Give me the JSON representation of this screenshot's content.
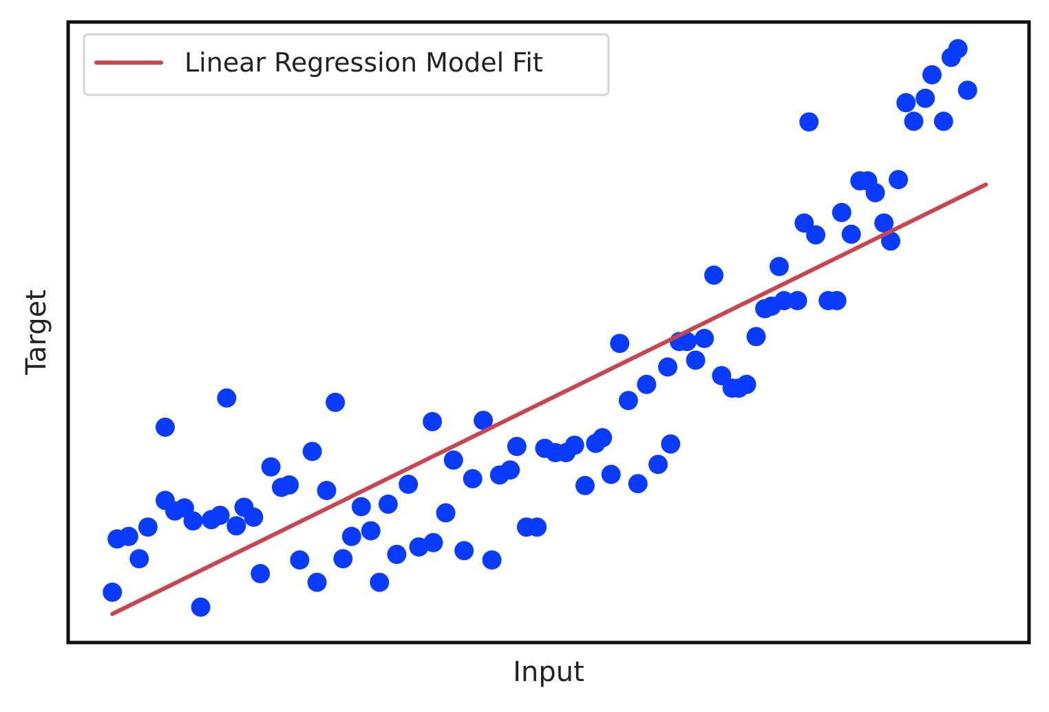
{
  "chart_data": {
    "type": "scatter",
    "title": "",
    "xlabel": "Input",
    "ylabel": "Target",
    "xlim": [
      0,
      1
    ],
    "ylim": [
      0,
      1
    ],
    "grid": false,
    "ticks": false,
    "legend": {
      "placement": "top-left",
      "entries": [
        "Linear Regression Model Fit"
      ]
    },
    "series": [
      {
        "type": "scatter",
        "color": "#0a3cff",
        "points": [
          [
            0.046,
            0.081
          ],
          [
            0.051,
            0.167
          ],
          [
            0.063,
            0.171
          ],
          [
            0.074,
            0.135
          ],
          [
            0.083,
            0.186
          ],
          [
            0.101,
            0.229
          ],
          [
            0.101,
            0.347
          ],
          [
            0.111,
            0.212
          ],
          [
            0.121,
            0.217
          ],
          [
            0.13,
            0.196
          ],
          [
            0.138,
            0.057
          ],
          [
            0.149,
            0.198
          ],
          [
            0.158,
            0.205
          ],
          [
            0.165,
            0.394
          ],
          [
            0.175,
            0.188
          ],
          [
            0.183,
            0.218
          ],
          [
            0.193,
            0.202
          ],
          [
            0.2,
            0.111
          ],
          [
            0.211,
            0.283
          ],
          [
            0.222,
            0.25
          ],
          [
            0.23,
            0.254
          ],
          [
            0.241,
            0.133
          ],
          [
            0.254,
            0.308
          ],
          [
            0.259,
            0.097
          ],
          [
            0.269,
            0.245
          ],
          [
            0.278,
            0.387
          ],
          [
            0.286,
            0.135
          ],
          [
            0.295,
            0.171
          ],
          [
            0.305,
            0.219
          ],
          [
            0.315,
            0.18
          ],
          [
            0.324,
            0.097
          ],
          [
            0.333,
            0.223
          ],
          [
            0.342,
            0.142
          ],
          [
            0.354,
            0.255
          ],
          [
            0.365,
            0.154
          ],
          [
            0.379,
            0.356
          ],
          [
            0.38,
            0.161
          ],
          [
            0.393,
            0.209
          ],
          [
            0.401,
            0.294
          ],
          [
            0.412,
            0.148
          ],
          [
            0.421,
            0.264
          ],
          [
            0.432,
            0.358
          ],
          [
            0.441,
            0.133
          ],
          [
            0.449,
            0.27
          ],
          [
            0.46,
            0.278
          ],
          [
            0.467,
            0.316
          ],
          [
            0.477,
            0.186
          ],
          [
            0.488,
            0.186
          ],
          [
            0.496,
            0.313
          ],
          [
            0.507,
            0.306
          ],
          [
            0.518,
            0.306
          ],
          [
            0.527,
            0.318
          ],
          [
            0.538,
            0.253
          ],
          [
            0.549,
            0.321
          ],
          [
            0.556,
            0.33
          ],
          [
            0.565,
            0.271
          ],
          [
            0.574,
            0.482
          ],
          [
            0.583,
            0.39
          ],
          [
            0.593,
            0.256
          ],
          [
            0.602,
            0.416
          ],
          [
            0.614,
            0.287
          ],
          [
            0.624,
            0.444
          ],
          [
            0.627,
            0.32
          ],
          [
            0.636,
            0.485
          ],
          [
            0.644,
            0.485
          ],
          [
            0.653,
            0.455
          ],
          [
            0.662,
            0.49
          ],
          [
            0.672,
            0.592
          ],
          [
            0.68,
            0.43
          ],
          [
            0.691,
            0.41
          ],
          [
            0.698,
            0.41
          ],
          [
            0.706,
            0.416
          ],
          [
            0.716,
            0.493
          ],
          [
            0.725,
            0.538
          ],
          [
            0.732,
            0.542
          ],
          [
            0.74,
            0.606
          ],
          [
            0.745,
            0.551
          ],
          [
            0.759,
            0.551
          ],
          [
            0.766,
            0.676
          ],
          [
            0.771,
            0.839
          ],
          [
            0.778,
            0.657
          ],
          [
            0.791,
            0.551
          ],
          [
            0.8,
            0.551
          ],
          [
            0.805,
            0.693
          ],
          [
            0.815,
            0.658
          ],
          [
            0.824,
            0.744
          ],
          [
            0.832,
            0.744
          ],
          [
            0.84,
            0.725
          ],
          [
            0.849,
            0.676
          ],
          [
            0.856,
            0.647
          ],
          [
            0.864,
            0.746
          ],
          [
            0.872,
            0.87
          ],
          [
            0.88,
            0.84
          ],
          [
            0.892,
            0.877
          ],
          [
            0.899,
            0.915
          ],
          [
            0.911,
            0.84
          ],
          [
            0.919,
            0.943
          ],
          [
            0.926,
            0.957
          ],
          [
            0.936,
            0.89
          ]
        ]
      },
      {
        "type": "line",
        "name": "Linear Regression Model Fit",
        "color": "#c8464f",
        "x": [
          0.046,
          0.955
        ],
        "y": [
          0.046,
          0.738
        ]
      }
    ]
  }
}
